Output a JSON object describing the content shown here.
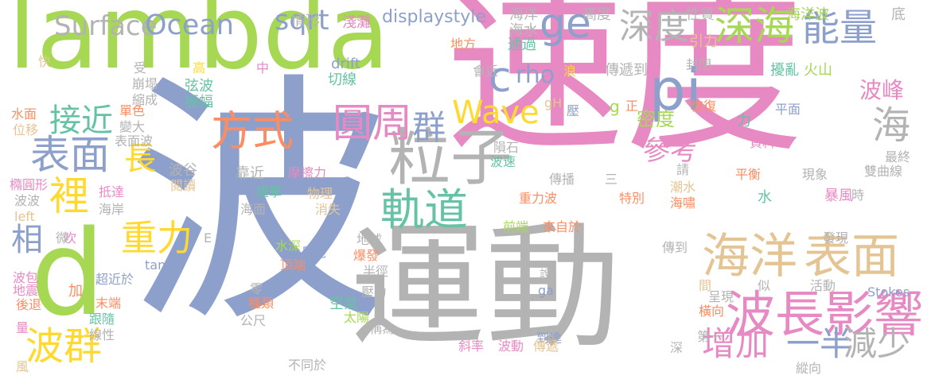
{
  "palette": {
    "green": "#a6d854",
    "pink": "#e78ac3",
    "blue": "#8da0cb",
    "gray": "#b3b3b3",
    "tan": "#e5c494",
    "yellow": "#ffd92f",
    "teal": "#66c2a5",
    "orange": "#fc8d62"
  },
  "words": [
    {
      "text": "lambda",
      "color": "#a6d854"
    },
    {
      "text": "速度",
      "color": "#e78ac3"
    },
    {
      "text": "波",
      "color": "#8da0cb"
    },
    {
      "text": "運動",
      "color": "#b3b3b3"
    },
    {
      "text": "d",
      "color": "#a6d854"
    },
    {
      "text": "海洋",
      "color": "#e5c494"
    },
    {
      "text": "表面",
      "color": "#e5c494"
    },
    {
      "text": "波長",
      "color": "#e78ac3"
    },
    {
      "text": "影響",
      "color": "#e78ac3"
    },
    {
      "text": "粒子",
      "color": "#b3b3b3"
    },
    {
      "text": "pi",
      "color": "#8da0cb"
    },
    {
      "text": "Surface",
      "color": "#b3b3b3"
    },
    {
      "text": "Ocean",
      "color": "#8da0cb"
    },
    {
      "text": "sqrt",
      "color": "#8da0cb"
    },
    {
      "text": "ge",
      "color": "#8da0cb"
    },
    {
      "text": "深度",
      "color": "#b3b3b3"
    },
    {
      "text": "深海",
      "color": "#a6d854"
    },
    {
      "text": "能量",
      "color": "#8da0cb"
    },
    {
      "text": "c",
      "color": "#8da0cb"
    },
    {
      "text": "rho",
      "color": "#8da0cb"
    },
    {
      "text": "方式",
      "color": "#fc8d62"
    },
    {
      "text": "圓周",
      "color": "#e78ac3"
    },
    {
      "text": "群",
      "color": "#8da0cb"
    },
    {
      "text": "Wave",
      "color": "#ffd92f"
    },
    {
      "text": "接近",
      "color": "#66c2a5"
    },
    {
      "text": "表面",
      "color": "#8da0cb"
    },
    {
      "text": "裡",
      "color": "#ffd92f"
    },
    {
      "text": "長",
      "color": "#ffd92f"
    },
    {
      "text": "軌道",
      "color": "#66c2a5"
    },
    {
      "text": "重力",
      "color": "#ffd92f"
    },
    {
      "text": "相",
      "color": "#8da0cb"
    },
    {
      "text": "波群",
      "color": "#ffd92f"
    },
    {
      "text": "海",
      "color": "#b3b3b3"
    },
    {
      "text": "參考",
      "color": "#e78ac3"
    },
    {
      "text": "密度",
      "color": "#a6d854"
    },
    {
      "text": "波峰",
      "color": "#e78ac3"
    },
    {
      "text": "增加",
      "color": "#e78ac3"
    },
    {
      "text": "一半",
      "color": "#8da0cb"
    },
    {
      "text": "減少",
      "color": "#b3b3b3"
    },
    {
      "text": "displaystyle",
      "color": "#8da0cb"
    },
    {
      "text": "海洋",
      "color": "#b3b3b3"
    },
    {
      "text": "海水",
      "color": "#b3b3b3"
    },
    {
      "text": "淺灘",
      "color": "#e78ac3"
    },
    {
      "text": "情形",
      "color": "#b3b3b3"
    },
    {
      "text": "高度",
      "color": "#b3b3b3"
    },
    {
      "text": "性質",
      "color": "#b3b3b3"
    },
    {
      "text": "海洋波",
      "color": "#a6d854"
    },
    {
      "text": "底",
      "color": "#b3b3b3"
    },
    {
      "text": "通過",
      "color": "#66c2a5"
    },
    {
      "text": "地方",
      "color": "#fc8d62"
    },
    {
      "text": "引力",
      "color": "#e5c494"
    },
    {
      "text": "封閉",
      "color": "#b3b3b3"
    },
    {
      "text": "會近",
      "color": "#b3b3b3"
    },
    {
      "text": "浪",
      "color": "#ffd92f"
    },
    {
      "text": "傳遞到",
      "color": "#b3b3b3"
    },
    {
      "text": "擾亂",
      "color": "#66c2a5"
    },
    {
      "text": "火山",
      "color": "#a6d854"
    },
    {
      "text": "快",
      "color": "#e5c494"
    },
    {
      "text": "受",
      "color": "#b3b3b3"
    },
    {
      "text": "高",
      "color": "#ffd92f"
    },
    {
      "text": "中",
      "color": "#e78ac3"
    },
    {
      "text": "drift",
      "color": "#8da0cb"
    },
    {
      "text": "切線",
      "color": "#66c2a5"
    },
    {
      "text": "崩塌",
      "color": "#b3b3b3"
    },
    {
      "text": "弦波",
      "color": "#66c2a5"
    },
    {
      "text": "縮成",
      "color": "#b3b3b3"
    },
    {
      "text": "振幅",
      "color": "#66c2a5"
    },
    {
      "text": "gH",
      "color": "#e5c494"
    },
    {
      "text": "壓",
      "color": "#8da0cb"
    },
    {
      "text": "g",
      "color": "#a6d854"
    },
    {
      "text": "正",
      "color": "#fc8d62"
    },
    {
      "text": "恢復",
      "color": "#fc8d62"
    },
    {
      "text": "平面",
      "color": "#8da0cb"
    },
    {
      "text": "水面",
      "color": "#fc8d62"
    },
    {
      "text": "單色",
      "color": "#fc8d62"
    },
    {
      "text": "位移",
      "color": "#e5c494"
    },
    {
      "text": "變大",
      "color": "#b3b3b3"
    },
    {
      "text": "表面波",
      "color": "#b3b3b3"
    },
    {
      "text": "力",
      "color": "#66c2a5"
    },
    {
      "text": "資料",
      "color": "#e78ac3"
    },
    {
      "text": "隕石",
      "color": "#b3b3b3"
    },
    {
      "text": "波速",
      "color": "#66c2a5"
    },
    {
      "text": "最終",
      "color": "#b3b3b3"
    },
    {
      "text": "雙曲線",
      "color": "#b3b3b3"
    },
    {
      "text": "請",
      "color": "#b3b3b3"
    },
    {
      "text": "平衡",
      "color": "#fc8d62"
    },
    {
      "text": "現象",
      "color": "#b3b3b3"
    },
    {
      "text": "波谷",
      "color": "#b3b3b3"
    },
    {
      "text": "靠近",
      "color": "#b3b3b3"
    },
    {
      "text": "摩擦力",
      "color": "#e78ac3"
    },
    {
      "text": "傳播",
      "color": "#b3b3b3"
    },
    {
      "text": "三",
      "color": "#b3b3b3"
    },
    {
      "text": "重力波",
      "color": "#fc8d62"
    },
    {
      "text": "特別",
      "color": "#fc8d62"
    },
    {
      "text": "潮水",
      "color": "#e5c494"
    },
    {
      "text": "海嘯",
      "color": "#fc8d62"
    },
    {
      "text": "暴風",
      "color": "#e78ac3"
    },
    {
      "text": "時",
      "color": "#b3b3b3"
    },
    {
      "text": "橢圓形",
      "color": "#e78ac3"
    },
    {
      "text": "抵達",
      "color": "#e78ac3"
    },
    {
      "text": "閱讀",
      "color": "#e5c494"
    },
    {
      "text": "撞擊",
      "color": "#66c2a5"
    },
    {
      "text": "物理",
      "color": "#e5c494"
    },
    {
      "text": "波波",
      "color": "#b3b3b3"
    },
    {
      "text": "海岸",
      "color": "#b3b3b3"
    },
    {
      "text": "海面",
      "color": "#b3b3b3"
    },
    {
      "text": "消失",
      "color": "#e5c494"
    },
    {
      "text": "left",
      "color": "#e5c494"
    },
    {
      "text": "水",
      "color": "#66c2a5"
    },
    {
      "text": "前端",
      "color": "#a6d854"
    },
    {
      "text": "來自於",
      "color": "#fc8d62"
    },
    {
      "text": "發現",
      "color": "#b3b3b3"
    },
    {
      "text": "吹",
      "color": "#e78ac3"
    },
    {
      "text": "E",
      "color": "#b3b3b3"
    },
    {
      "text": "微",
      "color": "#b3b3b3"
    },
    {
      "text": "水深",
      "color": "#a6d854"
    },
    {
      "text": "地球",
      "color": "#b3b3b3"
    },
    {
      "text": "月亮",
      "color": "#8da0cb"
    },
    {
      "text": "爆發",
      "color": "#fc8d62"
    },
    {
      "text": "頂端",
      "color": "#fc8d62"
    },
    {
      "text": "傳到",
      "color": "#b3b3b3"
    },
    {
      "text": "tanh",
      "color": "#8da0cb"
    },
    {
      "text": "波包",
      "color": "#e78ac3"
    },
    {
      "text": "超近於",
      "color": "#8da0cb"
    },
    {
      "text": "半徑",
      "color": "#b3b3b3"
    },
    {
      "text": "說",
      "color": "#b3b3b3"
    },
    {
      "text": "間",
      "color": "#e5c494"
    },
    {
      "text": "呈現",
      "color": "#b3b3b3"
    },
    {
      "text": "似",
      "color": "#b3b3b3"
    },
    {
      "text": "活動",
      "color": "#b3b3b3"
    },
    {
      "text": "地震",
      "color": "#e78ac3"
    },
    {
      "text": "加",
      "color": "#fc8d62"
    },
    {
      "text": "後退",
      "color": "#fc8d62"
    },
    {
      "text": "末端",
      "color": "#fc8d62"
    },
    {
      "text": "零",
      "color": "#b3b3b3"
    },
    {
      "text": "種類",
      "color": "#fc8d62"
    },
    {
      "text": "空氣",
      "color": "#66c2a5"
    },
    {
      "text": "壓力",
      "color": "#b3b3b3"
    },
    {
      "text": "ga",
      "color": "#8da0cb"
    },
    {
      "text": "Stokes",
      "color": "#8da0cb"
    },
    {
      "text": "橫向",
      "color": "#fc8d62"
    },
    {
      "text": "跟隨",
      "color": "#66c2a5"
    },
    {
      "text": "線性",
      "color": "#b3b3b3"
    },
    {
      "text": "公尺",
      "color": "#b3b3b3"
    },
    {
      "text": "太陽",
      "color": "#a6d854"
    },
    {
      "text": "稱為",
      "color": "#b3b3b3"
    },
    {
      "text": "到達",
      "color": "#8da0cb"
    },
    {
      "text": "量",
      "color": "#e78ac3"
    },
    {
      "text": "第一",
      "color": "#b3b3b3"
    },
    {
      "text": "深",
      "color": "#b3b3b3"
    },
    {
      "text": "斜率",
      "color": "#e78ac3"
    },
    {
      "text": "波動",
      "color": "#e78ac3"
    },
    {
      "text": "傳遞",
      "color": "#e5c494"
    },
    {
      "text": "風",
      "color": "#e5c494"
    },
    {
      "text": "不同於",
      "color": "#b3b3b3"
    },
    {
      "text": "縱向",
      "color": "#b3b3b3"
    }
  ]
}
